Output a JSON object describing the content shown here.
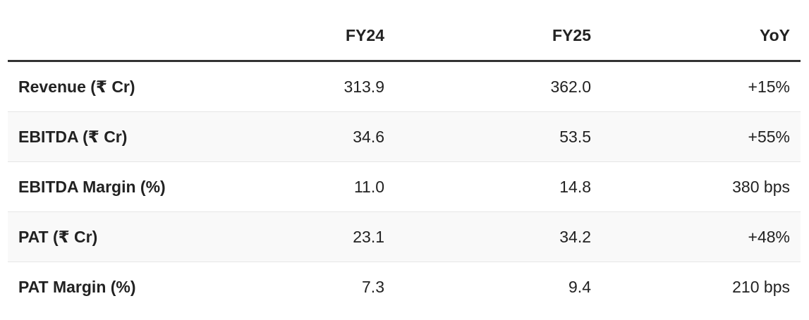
{
  "table": {
    "header": [
      "FY24",
      "FY25",
      "YoY"
    ],
    "rows": [
      [
        "Revenue (₹ Cr)",
        "313.9",
        "362.0",
        "+15%"
      ],
      [
        "EBITDA (₹ Cr)",
        "34.6",
        "53.5",
        "+55%"
      ],
      [
        "EBITDA Margin (%)",
        "11.0",
        "14.8",
        "380 bps"
      ],
      [
        "PAT (₹ Cr)",
        "23.1",
        "34.2",
        "+48%"
      ],
      [
        "PAT Margin (%)",
        "7.3",
        "9.4",
        "210 bps"
      ]
    ]
  }
}
